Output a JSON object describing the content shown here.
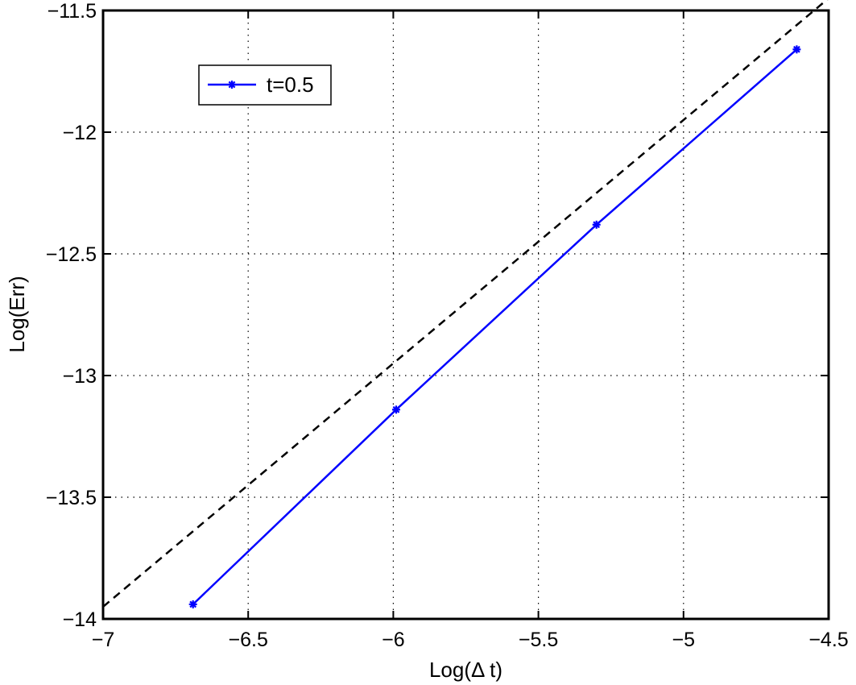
{
  "chart_data": {
    "type": "line",
    "title": "",
    "xlabel": "Log(Δ t)",
    "ylabel": "Log(Err)",
    "xlim": [
      -7,
      -4.5
    ],
    "ylim": [
      -14,
      -11.5
    ],
    "x_ticks": [
      -7,
      -6.5,
      -6,
      -5.5,
      -5,
      -4.5
    ],
    "y_ticks": [
      -14,
      -13.5,
      -13,
      -12.5,
      -12,
      -11.5
    ],
    "x_tick_labels": [
      "−7",
      "−6.5",
      "−6",
      "−5.5",
      "−5",
      "−4.5"
    ],
    "y_tick_labels": [
      "−14",
      "−13.5",
      "−13",
      "−12.5",
      "−12",
      "−11.5"
    ],
    "grid": true,
    "legend_position": "top-left",
    "series": [
      {
        "name": "t=0.5",
        "color": "#0000ff",
        "style": "solid",
        "marker": "asterisk",
        "x": [
          -6.69,
          -5.99,
          -5.3,
          -4.61
        ],
        "y": [
          -13.94,
          -13.14,
          -12.38,
          -11.66
        ]
      },
      {
        "color": "#000000",
        "style": "dashed",
        "marker": "none",
        "x": [
          -7.0,
          -4.5
        ],
        "y": [
          -13.95,
          -11.45
        ]
      }
    ]
  }
}
